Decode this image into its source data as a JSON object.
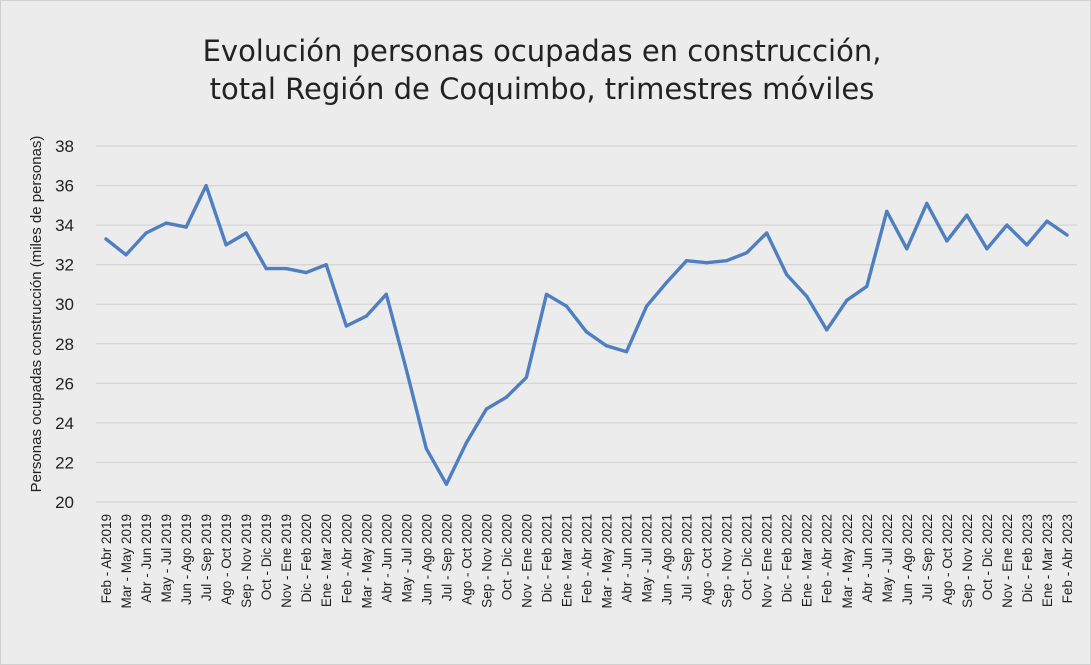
{
  "chart_data": {
    "type": "line",
    "title": [
      "Evolución personas ocupadas en construcción,",
      "total Región de Coquimbo, trimestres móviles"
    ],
    "xlabel": "",
    "ylabel": "Personas ocupadas construcción (miles de personas)",
    "ylim": [
      20,
      38
    ],
    "yticks": [
      "20",
      "22",
      "24",
      "26",
      "28",
      "30",
      "32",
      "34",
      "36",
      "38"
    ],
    "grid": true,
    "line_color": "#4f7fc0",
    "categories": [
      "Feb - Abr 2019",
      "Mar - May 2019",
      "Abr - Jun 2019",
      "May - Jul 2019",
      "Jun - Ago 2019",
      "Jul - Sep 2019",
      "Ago - Oct 2019",
      "Sep - Nov 2019",
      "Oct - Dic 2019",
      "Nov - Ene 2019",
      "Dic - Feb 2020",
      "Ene - Mar 2020",
      "Feb - Abr 2020",
      "Mar - May 2020",
      "Abr - Jun 2020",
      "May - Jul 2020",
      "Jun - Ago 2020",
      "Jul - Sep 2020",
      "Ago - Oct 2020",
      "Sep - Nov 2020",
      "Oct - Dic 2020",
      "Nov - Ene 2020",
      "Dic - Feb 2021",
      "Ene - Mar 2021",
      "Feb - Abr 2021",
      "Mar - May 2021",
      "Abr - Jun 2021",
      "May - Jul 2021",
      "Jun - Ago 2021",
      "Jul - Sep 2021",
      "Ago - Oct 2021",
      "Sep - Nov 2021",
      "Oct - Dic 2021",
      "Nov - Ene 2021",
      "Dic - Feb 2022",
      "Ene - Mar 2022",
      "Feb - Abr 2022",
      "Mar - May 2022",
      "Abr - Jun 2022",
      "May - Jul 2022",
      "Jun - Ago 2022",
      "Jul - Sep 2022",
      "Ago - Oct 2022",
      "Sep - Nov 2022",
      "Oct - Dic 2022",
      "Nov - Ene 2022",
      "Dic - Feb 2023",
      "Ene - Mar 2023",
      "Feb - Abr 2023"
    ],
    "series": [
      {
        "name": "Personas ocupadas construcción",
        "values": [
          33.3,
          32.5,
          33.6,
          34.1,
          33.9,
          36.0,
          33.0,
          33.6,
          31.8,
          31.8,
          31.6,
          32.0,
          28.9,
          29.4,
          30.5,
          26.7,
          22.7,
          20.9,
          23.0,
          24.7,
          25.3,
          26.3,
          30.5,
          29.9,
          28.6,
          27.9,
          27.6,
          29.9,
          31.1,
          32.2,
          32.1,
          32.2,
          32.6,
          33.6,
          31.5,
          30.4,
          28.7,
          30.2,
          30.9,
          34.7,
          32.8,
          35.1,
          33.2,
          34.5,
          32.8,
          34.0,
          33.0,
          34.2,
          33.5
        ]
      }
    ]
  }
}
